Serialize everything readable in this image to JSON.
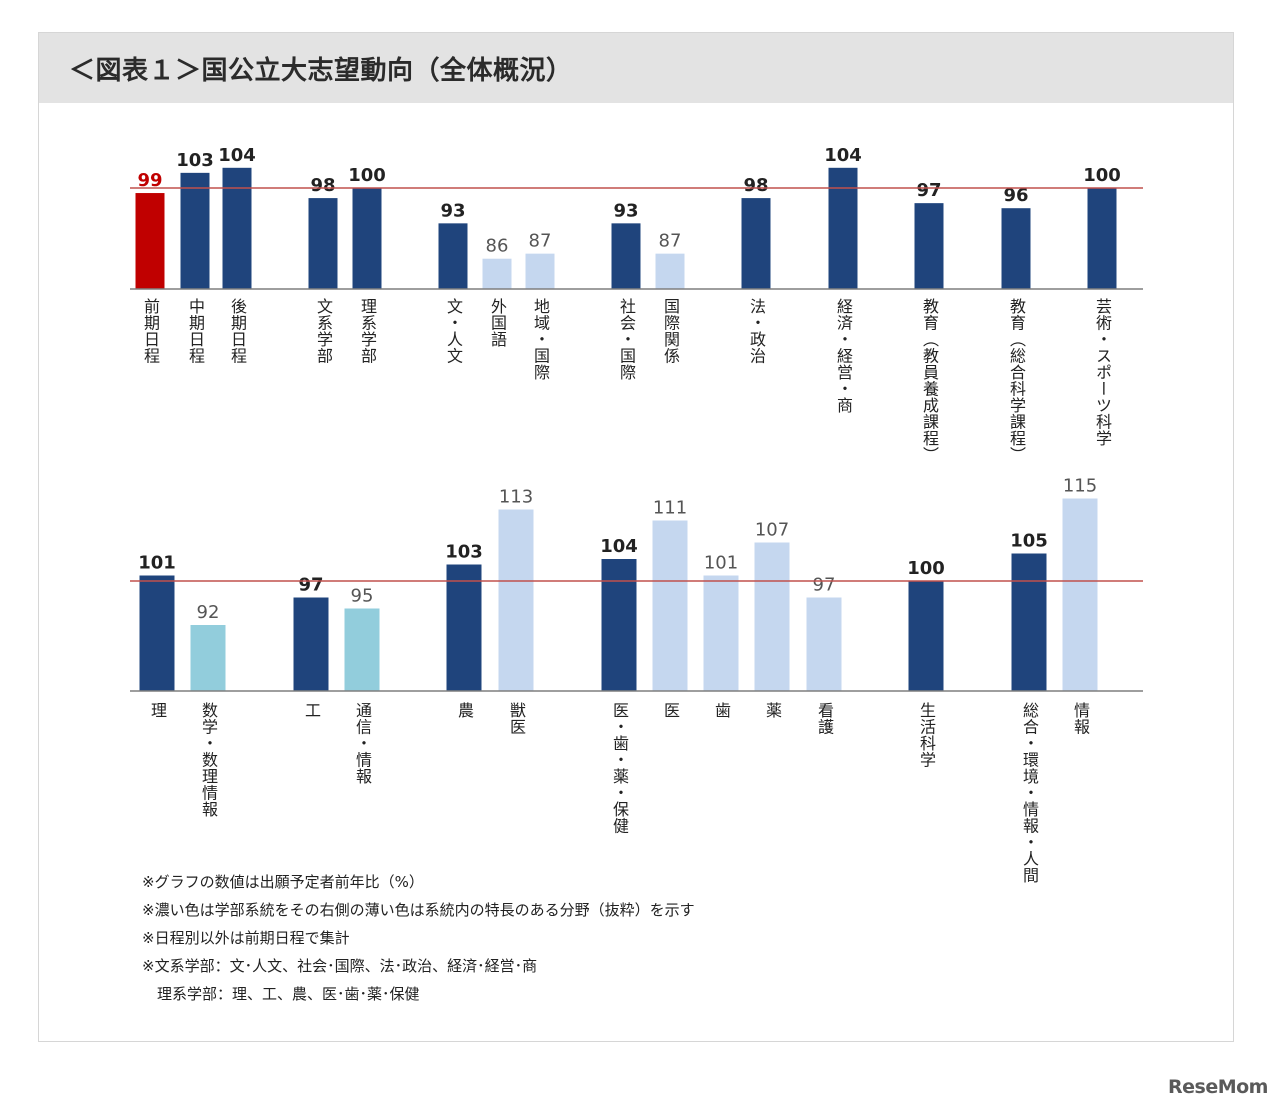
{
  "title": "＜図表１＞国公立大志望動向（全体概況）",
  "colors": {
    "highlight": "#c00000",
    "dark": "#1f447c",
    "light": "#c5d7ef",
    "cyan": "#92cddc",
    "reference_line": "#c0504d",
    "axis": "#7f7f7f"
  },
  "chart_data": [
    {
      "type": "bar",
      "reference_value": 100,
      "ylim": [
        80,
        105
      ],
      "bars": [
        {
          "label": "前期日程",
          "value": 99,
          "style": "highlight"
        },
        {
          "label": "中期日程",
          "value": 103,
          "style": "dark"
        },
        {
          "label": "後期日程",
          "value": 104,
          "style": "dark"
        },
        {
          "label": "文系学部",
          "value": 98,
          "style": "dark"
        },
        {
          "label": "理系学部",
          "value": 100,
          "style": "dark"
        },
        {
          "label": "文・人文",
          "value": 93,
          "style": "dark"
        },
        {
          "label": "外国語",
          "value": 86,
          "style": "light"
        },
        {
          "label": "地域・国際",
          "value": 87,
          "style": "light"
        },
        {
          "label": "社会・国際",
          "value": 93,
          "style": "dark"
        },
        {
          "label": "国際関係",
          "value": 87,
          "style": "light"
        },
        {
          "label": "法・政治",
          "value": 98,
          "style": "dark"
        },
        {
          "label": "経済・経営・商",
          "value": 104,
          "style": "dark"
        },
        {
          "label": "教育（教員養成課程）",
          "value": 97,
          "style": "dark"
        },
        {
          "label": "教育（総合科学課程）",
          "value": 96,
          "style": "dark"
        },
        {
          "label": "芸術・スポーツ科学",
          "value": 100,
          "style": "dark"
        }
      ]
    },
    {
      "type": "bar",
      "reference_value": 100,
      "ylim": [
        80,
        116
      ],
      "bars": [
        {
          "label": "理",
          "value": 101,
          "style": "dark"
        },
        {
          "label": "数学・数理情報",
          "value": 92,
          "style": "cyan"
        },
        {
          "label": "工",
          "value": 97,
          "style": "dark"
        },
        {
          "label": "通信・情報",
          "value": 95,
          "style": "cyan"
        },
        {
          "label": "農",
          "value": 103,
          "style": "dark"
        },
        {
          "label": "獣医",
          "value": 113,
          "style": "light"
        },
        {
          "label": "医・歯・薬・保健",
          "value": 104,
          "style": "dark"
        },
        {
          "label": "医",
          "value": 111,
          "style": "light"
        },
        {
          "label": "歯",
          "value": 101,
          "style": "light"
        },
        {
          "label": "薬",
          "value": 107,
          "style": "light"
        },
        {
          "label": "看護",
          "value": 97,
          "style": "light"
        },
        {
          "label": "生活科学",
          "value": 100,
          "style": "dark"
        },
        {
          "label": "総合・環境・情報・人間",
          "value": 105,
          "style": "dark"
        },
        {
          "label": "情報",
          "value": 115,
          "style": "light"
        }
      ]
    }
  ],
  "notes": [
    "※グラフの数値は出願予定者前年比（%）",
    "※濃い色は学部系統をその右側の薄い色は系統内の特長のある分野（抜粋）を示す",
    "※日程別以外は前期日程で集計",
    "※文系学部：文･人文、社会･国際、法･政治、経済･経営･商",
    "　理系学部：理、工、農、医･歯･薬･保健"
  ],
  "watermark": "ReseMom"
}
